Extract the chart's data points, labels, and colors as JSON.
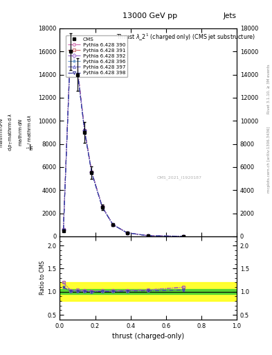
{
  "title_top": "13000 GeV pp",
  "title_right": "Jets",
  "xlabel": "thrust (charged-only)",
  "ylabel_ratio": "Ratio to CMS",
  "rivet_label": "Rivet 3.1.10, ≥ 3M events",
  "mcplots_label": "mcplots.cern.ch [arXiv:1306.3436]",
  "ref_label": "CMS_2021_I1920187",
  "x_values": [
    0.02,
    0.06,
    0.1,
    0.14,
    0.18,
    0.24,
    0.3,
    0.38,
    0.5,
    0.7
  ],
  "cms_y": [
    500,
    16000,
    14000,
    9000,
    5500,
    2500,
    1000,
    300,
    50,
    5
  ],
  "cms_yerr": [
    50,
    1600,
    1400,
    900,
    550,
    250,
    100,
    30,
    5,
    1
  ],
  "pythia_390_y": [
    600,
    16500,
    14500,
    9200,
    5600,
    2550,
    1020,
    310,
    52,
    5.5
  ],
  "pythia_391_y": [
    600,
    16500,
    14500,
    9200,
    5600,
    2550,
    1020,
    310,
    52,
    5.5
  ],
  "pythia_392_y": [
    600,
    16500,
    14500,
    9200,
    5600,
    2550,
    1020,
    310,
    52,
    5.5
  ],
  "pythia_396_y": [
    550,
    16200,
    14200,
    9100,
    5500,
    2520,
    1010,
    305,
    51,
    5.2
  ],
  "pythia_397_y": [
    550,
    16200,
    14200,
    9100,
    5500,
    2520,
    1010,
    305,
    51,
    5.2
  ],
  "pythia_398_y": [
    550,
    16200,
    14200,
    9100,
    5500,
    2520,
    1010,
    305,
    51,
    5.2
  ],
  "series": [
    {
      "label": "Pythia 6.428 390",
      "color": "#cc66aa",
      "marker": "o",
      "linestyle": "-.",
      "fillstyle": "none"
    },
    {
      "label": "Pythia 6.428 391",
      "color": "#cc6666",
      "marker": "s",
      "linestyle": "-.",
      "fillstyle": "none"
    },
    {
      "label": "Pythia 6.428 392",
      "color": "#9966cc",
      "marker": "D",
      "linestyle": "-.",
      "fillstyle": "none"
    },
    {
      "label": "Pythia 6.428 396",
      "color": "#6699cc",
      "marker": "*",
      "linestyle": "-.",
      "fillstyle": "none"
    },
    {
      "label": "Pythia 6.428 397",
      "color": "#6666cc",
      "marker": "^",
      "linestyle": "-.",
      "fillstyle": "none"
    },
    {
      "label": "Pythia 6.428 398",
      "color": "#333399",
      "marker": "v",
      "linestyle": "-.",
      "fillstyle": "none"
    }
  ],
  "ylim_main": [
    0,
    18000
  ],
  "ylim_ratio": [
    0.4,
    2.2
  ],
  "xlim": [
    0,
    1.0
  ],
  "yticks_main": [
    0,
    2000,
    4000,
    6000,
    8000,
    10000,
    12000,
    14000,
    16000
  ],
  "ytick_labels_main": [
    "0",
    "2000",
    "4000",
    "6000",
    "8000",
    "10000",
    "12000",
    "14000",
    "16000"
  ],
  "background_color": "#ffffff"
}
